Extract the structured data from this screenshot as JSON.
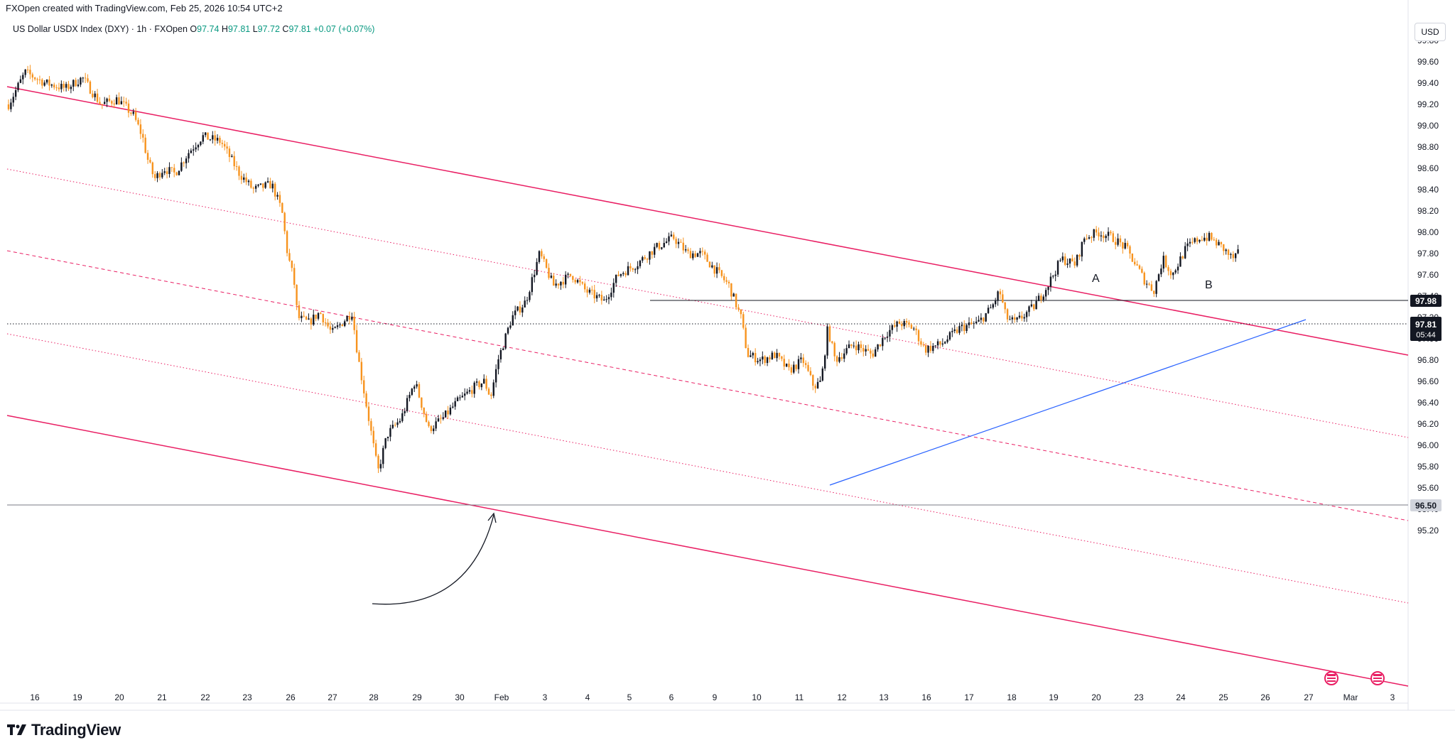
{
  "header": {
    "created_by": "FXOpen created with TradingView.com, Feb 25, 2026 10:54 UTC+2"
  },
  "legend": {
    "symbol": "US Dollar USDX Index (DXY) · 1h · FXOpen",
    "open_label": "O",
    "open": "97.74",
    "high_label": "H",
    "high": "97.81",
    "low_label": "L",
    "low": "97.72",
    "close_label": "C",
    "close": "97.81",
    "change": "+0.07 (+0.07%)"
  },
  "currency_button": "USD",
  "footer": {
    "brand": "TradingView"
  },
  "colors": {
    "up": "#089981",
    "candle": "#131722",
    "candle_down": "#f7931e",
    "channel": "#e91e63",
    "trendline": "#2962ff"
  },
  "chart_data": {
    "type": "candlestick",
    "title": "US Dollar USDX Index (DXY) · 1h · FXOpen",
    "y_ticks": [
      "99.80",
      "99.60",
      "99.40",
      "99.20",
      "99.00",
      "98.80",
      "98.60",
      "98.40",
      "98.20",
      "98.00",
      "97.80",
      "97.60",
      "97.40",
      "97.20",
      "97.00",
      "96.80",
      "96.60",
      "96.40",
      "96.20",
      "96.00",
      "95.80",
      "95.60",
      "95.40",
      "95.20"
    ],
    "ylim": [
      95.1,
      99.95
    ],
    "x_ticks": [
      "16",
      "19",
      "20",
      "21",
      "22",
      "23",
      "26",
      "27",
      "28",
      "29",
      "30",
      "Feb",
      "3",
      "4",
      "5",
      "6",
      "9",
      "10",
      "11",
      "12",
      "13",
      "16",
      "17",
      "18",
      "19",
      "20",
      "23",
      "24",
      "25",
      "26",
      "27",
      "Mar",
      "3"
    ],
    "price_labels": {
      "resistance": "97.98",
      "last": "97.81",
      "countdown": "05:44",
      "support": "96.50"
    },
    "annotations": [
      "A",
      "B"
    ],
    "price_path": [
      [
        0,
        99.2
      ],
      [
        18,
        99.5
      ],
      [
        40,
        99.4
      ],
      [
        62,
        99.35
      ],
      [
        80,
        99.45
      ],
      [
        100,
        99.2
      ],
      [
        118,
        99.25
      ],
      [
        135,
        99.1
      ],
      [
        145,
        98.9
      ],
      [
        150,
        98.7
      ],
      [
        158,
        98.5
      ],
      [
        168,
        98.6
      ],
      [
        180,
        98.55
      ],
      [
        195,
        98.75
      ],
      [
        210,
        98.9
      ],
      [
        230,
        98.85
      ],
      [
        250,
        98.55
      ],
      [
        265,
        98.4
      ],
      [
        285,
        98.45
      ],
      [
        296,
        98.2
      ],
      [
        302,
        97.8
      ],
      [
        309,
        97.55
      ],
      [
        313,
        97.2
      ],
      [
        325,
        97.15
      ],
      [
        337,
        97.25
      ],
      [
        350,
        97.05
      ],
      [
        372,
        97.25
      ],
      [
        378,
        96.85
      ],
      [
        388,
        96.35
      ],
      [
        400,
        95.75
      ],
      [
        410,
        96.1
      ],
      [
        425,
        96.25
      ],
      [
        440,
        96.6
      ],
      [
        455,
        96.15
      ],
      [
        470,
        96.25
      ],
      [
        485,
        96.4
      ],
      [
        505,
        96.55
      ],
      [
        515,
        96.6
      ],
      [
        522,
        96.45
      ],
      [
        530,
        96.8
      ],
      [
        545,
        97.2
      ],
      [
        560,
        97.35
      ],
      [
        575,
        97.8
      ],
      [
        590,
        97.5
      ],
      [
        610,
        97.6
      ],
      [
        625,
        97.45
      ],
      [
        645,
        97.35
      ],
      [
        660,
        97.6
      ],
      [
        680,
        97.7
      ],
      [
        700,
        97.85
      ],
      [
        720,
        97.95
      ],
      [
        735,
        97.8
      ],
      [
        750,
        97.8
      ],
      [
        765,
        97.65
      ],
      [
        780,
        97.5
      ],
      [
        793,
        97.2
      ],
      [
        800,
        96.85
      ],
      [
        815,
        96.8
      ],
      [
        830,
        96.85
      ],
      [
        845,
        96.7
      ],
      [
        860,
        96.8
      ],
      [
        872,
        96.55
      ],
      [
        880,
        96.6
      ],
      [
        887,
        97.1
      ],
      [
        895,
        96.8
      ],
      [
        915,
        96.95
      ],
      [
        935,
        96.85
      ],
      [
        950,
        97.05
      ],
      [
        965,
        97.15
      ],
      [
        980,
        97.1
      ],
      [
        992,
        96.9
      ],
      [
        1010,
        96.95
      ],
      [
        1030,
        97.1
      ],
      [
        1050,
        97.15
      ],
      [
        1065,
        97.3
      ],
      [
        1073,
        97.45
      ],
      [
        1080,
        97.2
      ],
      [
        1090,
        97.15
      ],
      [
        1110,
        97.3
      ],
      [
        1125,
        97.5
      ],
      [
        1140,
        97.75
      ],
      [
        1155,
        97.7
      ],
      [
        1165,
        97.95
      ],
      [
        1180,
        98.0
      ],
      [
        1195,
        97.95
      ],
      [
        1210,
        97.85
      ],
      [
        1220,
        97.7
      ],
      [
        1230,
        97.55
      ],
      [
        1240,
        97.45
      ],
      [
        1250,
        97.75
      ],
      [
        1260,
        97.6
      ],
      [
        1275,
        97.85
      ],
      [
        1290,
        97.95
      ],
      [
        1300,
        97.95
      ],
      [
        1315,
        97.85
      ],
      [
        1325,
        97.75
      ],
      [
        1333,
        97.81
      ]
    ]
  }
}
